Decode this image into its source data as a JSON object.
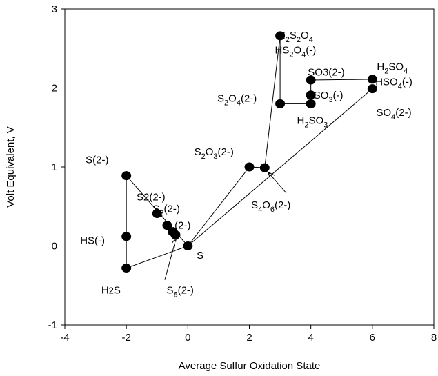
{
  "chart_data": {
    "type": "scatter",
    "title": "",
    "xlabel": "Average Sulfur Oxidation State",
    "ylabel": "Volt Equivalent, V",
    "xlim": [
      -4,
      8
    ],
    "ylim": [
      -1,
      3
    ],
    "xticks": [
      "-4",
      "-2",
      "0",
      "2",
      "4",
      "6",
      "8"
    ],
    "yticks": [
      "-1",
      "0",
      "1",
      "2",
      "3"
    ],
    "grid": false,
    "legend": "none",
    "marker_color": "#000000",
    "points": [
      {
        "id": "H2S",
        "x": -2,
        "y": -0.28
      },
      {
        "id": "HS-",
        "x": -2,
        "y": 0.12
      },
      {
        "id": "S2-",
        "x": -2,
        "y": 0.89
      },
      {
        "id": "S2_2-",
        "x": -1,
        "y": 0.41
      },
      {
        "id": "S3_2-",
        "x": -0.67,
        "y": 0.26
      },
      {
        "id": "S4_2-",
        "x": -0.5,
        "y": 0.18
      },
      {
        "id": "S5_2-",
        "x": -0.4,
        "y": 0.14
      },
      {
        "id": "S",
        "x": 0,
        "y": 0
      },
      {
        "id": "S2O3_2-",
        "x": 2,
        "y": 1.0
      },
      {
        "id": "S4O6_2-",
        "x": 2.5,
        "y": 0.99
      },
      {
        "id": "H2S2O4",
        "x": 3,
        "y": 2.66
      },
      {
        "id": "S2O4_2-",
        "x": 3,
        "y": 1.8
      },
      {
        "id": "H2SO3",
        "x": 4,
        "y": 1.8
      },
      {
        "id": "HSO3-",
        "x": 4,
        "y": 1.91
      },
      {
        "id": "SO3_2-",
        "x": 4,
        "y": 2.1
      },
      {
        "id": "H2SO4",
        "x": 6,
        "y": 2.11
      },
      {
        "id": "SO4_2-",
        "x": 6,
        "y": 1.99
      }
    ],
    "lines": [
      {
        "x": [
          -2,
          -2
        ],
        "y": [
          -0.28,
          0.89
        ]
      },
      {
        "x": [
          -2,
          0
        ],
        "y": [
          -0.28,
          0
        ]
      },
      {
        "x": [
          -2,
          0
        ],
        "y": [
          0.89,
          0
        ]
      },
      {
        "x": [
          0,
          6
        ],
        "y": [
          0,
          1.99
        ]
      },
      {
        "x": [
          0,
          2
        ],
        "y": [
          0,
          1.0
        ]
      },
      {
        "x": [
          2,
          2.5
        ],
        "y": [
          1.0,
          0.99
        ]
      },
      {
        "x": [
          2.5,
          3
        ],
        "y": [
          0.99,
          2.66
        ]
      },
      {
        "x": [
          3,
          3
        ],
        "y": [
          2.66,
          1.8
        ]
      },
      {
        "x": [
          3,
          4
        ],
        "y": [
          1.8,
          1.8
        ]
      },
      {
        "x": [
          4,
          4
        ],
        "y": [
          1.8,
          2.1
        ]
      },
      {
        "x": [
          4,
          6
        ],
        "y": [
          2.1,
          2.11
        ]
      }
    ],
    "labels": [
      {
        "id": "S2-",
        "text": "S(2-)",
        "x": -2.95,
        "y": 1.09
      },
      {
        "id": "HS-",
        "text": "HS(-)",
        "x": -3.1,
        "y": 0.07
      },
      {
        "id": "H2S",
        "html": "H<tspan font-size='13'>2</tspan>S",
        "text": "H2S",
        "x": -2.5,
        "y": -0.56
      },
      {
        "id": "S2_2-",
        "text": "S2(2-)",
        "x": -1.2,
        "y": 0.62
      },
      {
        "id": "S3_2-",
        "html": "S<tspan dy='5' font-size='11'>3</tspan><tspan dy='-5'>(2-)</tspan>",
        "text": "S3(2-)",
        "x": -0.7,
        "y": 0.47
      },
      {
        "id": "S4_2-",
        "html": "S<tspan dy='5' font-size='11'>4</tspan><tspan dy='-5'>(2-)</tspan>",
        "text": "S4(2-)",
        "x": -0.35,
        "y": 0.26
      },
      {
        "id": "S",
        "text": "S",
        "x": 0.4,
        "y": -0.12
      },
      {
        "id": "S5_2-",
        "html": "S<tspan dy='5' font-size='11'>5</tspan><tspan dy='-5'>(2-)</tspan>",
        "text": "S5(2-)",
        "x": -0.25,
        "y": -0.56
      },
      {
        "id": "S2O3_2-",
        "html": "S<tspan dy='5' font-size='11'>2</tspan><tspan dy='-5'>O</tspan><tspan dy='5' font-size='11'>3</tspan><tspan dy='-5'>(2-)</tspan>",
        "text": "S2O3(2-)",
        "x": 0.85,
        "y": 1.19
      },
      {
        "id": "S4O6_2-",
        "html": "S<tspan dy='5' font-size='11'>4</tspan><tspan dy='-5'>O</tspan><tspan dy='5' font-size='11'>6</tspan><tspan dy='-5'>(2-)</tspan>",
        "text": "S4O6(2-)",
        "x": 2.7,
        "y": 0.52
      },
      {
        "id": "H2S2O4",
        "html": "H<tspan dy='5' font-size='11'>2</tspan><tspan dy='-5'>S</tspan><tspan dy='5' font-size='11'>2</tspan><tspan dy='-5'>O</tspan><tspan dy='5' font-size='11'>4</tspan>",
        "text": "H2S2O4",
        "x": 3.5,
        "y": 2.67
      },
      {
        "id": "HS2O4-",
        "html": "HS<tspan dy='5' font-size='11'>2</tspan><tspan dy='-5'>O</tspan><tspan dy='5' font-size='11'>4</tspan><tspan dy='-5'>(-)</tspan>",
        "text": "HS2O4(-)",
        "x": 3.5,
        "y": 2.48
      },
      {
        "id": "S2O4_2-",
        "html": "S<tspan dy='5' font-size='11'>2</tspan><tspan dy='-5'>O</tspan><tspan dy='5' font-size='11'>4</tspan><tspan dy='-5'>(2-)</tspan>",
        "text": "S2O4(2-)",
        "x": 1.6,
        "y": 1.87
      },
      {
        "id": "H2SO3",
        "html": "H<tspan dy='5' font-size='11'>2</tspan><tspan dy='-5'>SO</tspan><tspan dy='5' font-size='11'>3</tspan>",
        "text": "H2SO3",
        "x": 4.05,
        "y": 1.59
      },
      {
        "id": "HSO3-",
        "html": "HSO<tspan dy='5' font-size='11'>3</tspan><tspan dy='-5'>(-)</tspan>",
        "text": "HSO3(-)",
        "x": 4.45,
        "y": 1.91
      },
      {
        "id": "SO3_2-",
        "text": "SO3(2-)",
        "x": 4.5,
        "y": 2.2
      },
      {
        "id": "H2SO4",
        "html": "H<tspan dy='5' font-size='11'>2</tspan><tspan dy='-5'>SO</tspan><tspan dy='5' font-size='11'>4</tspan>",
        "text": "H2SO4",
        "x": 6.65,
        "y": 2.27
      },
      {
        "id": "HSO4-",
        "html": "HSO<tspan dy='5' font-size='11'>4</tspan><tspan dy='-5'>(-)</tspan>",
        "text": "HSO4(-)",
        "x": 6.7,
        "y": 2.08
      },
      {
        "id": "SO4_2-",
        "html": "SO<tspan dy='5' font-size='11'>4</tspan><tspan dy='-5'>(2-)</tspan>",
        "text": "SO4(2-)",
        "x": 6.7,
        "y": 1.69
      }
    ],
    "arrows": [
      {
        "id": "S5_2-",
        "from": [
          -0.75,
          -0.43
        ],
        "to": [
          -0.38,
          0.1
        ]
      },
      {
        "id": "S4O6_2-",
        "from": [
          3.2,
          0.67
        ],
        "to": [
          2.62,
          0.93
        ]
      }
    ]
  }
}
